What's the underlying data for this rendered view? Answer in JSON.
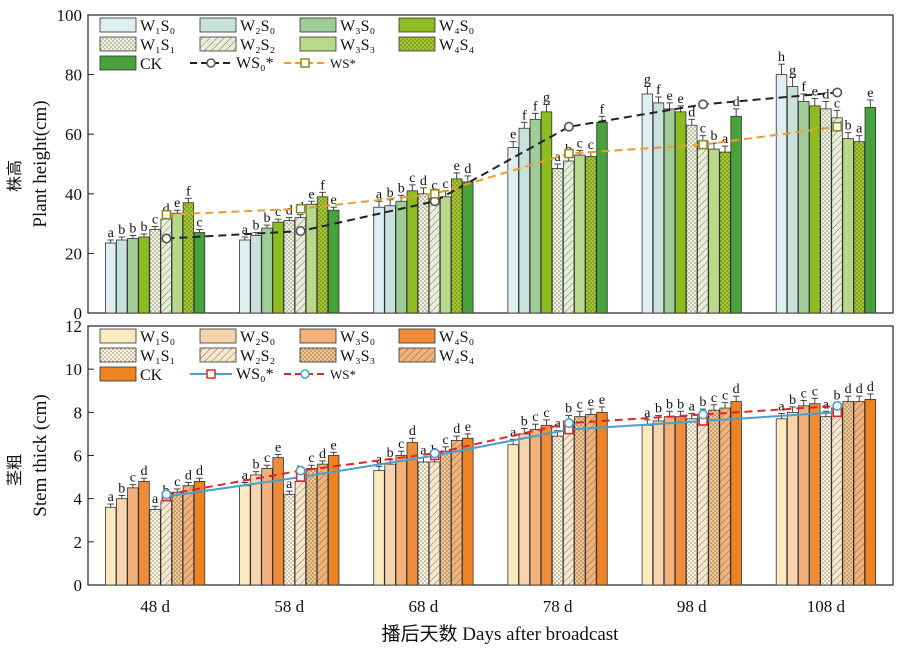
{
  "figure": {
    "x_axis_title": "播后天数 Days after broadcast"
  },
  "chart_data": [
    {
      "type": "bar",
      "panel": "top",
      "ylabel_cn": "株高",
      "ylabel": "Plant height(cm)",
      "ylim": [
        0,
        100
      ],
      "yticks": [
        "0",
        "20",
        "40",
        "60",
        "80",
        "100"
      ],
      "categories": [
        "48 d",
        "58 d",
        "68 d",
        "78 d",
        "98 d",
        "108 d"
      ],
      "series": [
        {
          "name": "W₁S₀",
          "fill": "#dfeef1",
          "pattern": "none",
          "values": [
            23.5,
            24.5,
            35.5,
            55.5,
            73.5,
            80.0
          ],
          "errors": [
            1.0,
            1.0,
            2.0,
            2.0,
            2.5,
            3.5
          ]
        },
        {
          "name": "W₂S₀",
          "fill": "#c8e2db",
          "pattern": "none",
          "values": [
            24.5,
            26.0,
            36.0,
            62.0,
            70.5,
            76.0
          ],
          "errors": [
            1.0,
            1.0,
            2.0,
            2.0,
            2.0,
            3.0
          ]
        },
        {
          "name": "W₃S₀",
          "fill": "#9fcd98",
          "pattern": "none",
          "values": [
            25.0,
            28.5,
            37.5,
            65.0,
            68.5,
            71.0
          ],
          "errors": [
            1.0,
            1.0,
            2.0,
            2.0,
            2.0,
            2.5
          ]
        },
        {
          "name": "W₄S₀",
          "fill": "#8cbc1f",
          "pattern": "none",
          "values": [
            25.5,
            30.5,
            41.0,
            67.5,
            67.5,
            69.5
          ],
          "errors": [
            1.0,
            1.0,
            2.0,
            2.5,
            2.0,
            2.5
          ]
        },
        {
          "name": "W₁S₁",
          "fill": "#eff3dc",
          "pattern": "dots",
          "values": [
            28.0,
            31.0,
            40.0,
            48.5,
            63.0,
            68.5
          ],
          "errors": [
            1.0,
            1.0,
            2.0,
            1.5,
            2.0,
            2.5
          ]
        },
        {
          "name": "W₂S₂",
          "fill": "#e8efd6",
          "pattern": "diag",
          "values": [
            31.5,
            32.0,
            38.5,
            51.0,
            57.5,
            65.5
          ],
          "errors": [
            1.0,
            1.0,
            2.0,
            1.5,
            2.0,
            2.5
          ]
        },
        {
          "name": "W₃S₃",
          "fill": "#b8d989",
          "pattern": "none",
          "values": [
            33.5,
            36.5,
            39.0,
            53.0,
            55.0,
            58.5
          ],
          "errors": [
            1.0,
            1.0,
            2.0,
            1.5,
            2.0,
            2.0
          ]
        },
        {
          "name": "W₄S₄",
          "fill": "#a2c82b",
          "pattern": "dots",
          "values": [
            37.0,
            39.0,
            45.0,
            52.5,
            54.0,
            57.5
          ],
          "errors": [
            1.5,
            1.5,
            2.0,
            1.5,
            2.0,
            2.0
          ]
        },
        {
          "name": "CK",
          "fill": "#47a23b",
          "pattern": "none",
          "values": [
            27.0,
            34.5,
            44.0,
            64.0,
            66.0,
            69.0
          ],
          "errors": [
            1.0,
            1.0,
            2.0,
            2.0,
            2.5,
            2.5
          ]
        }
      ],
      "letters": [
        [
          "a",
          "b",
          "b",
          "b",
          "c",
          "d",
          "e",
          "f",
          "c"
        ],
        [
          "a",
          "b",
          "b",
          "c",
          "d",
          "d",
          "e",
          "f",
          "e"
        ],
        [
          "a",
          "b",
          "b",
          "c",
          "d",
          "c",
          "c",
          "e",
          "d"
        ],
        [
          "e",
          "f",
          "f",
          "g",
          "a",
          "b",
          "c",
          "c",
          "f"
        ],
        [
          "g",
          "f",
          "e",
          "e",
          "d",
          "c",
          "b",
          "a",
          "d"
        ],
        [
          "h",
          "g",
          "f",
          "e",
          "d",
          "c",
          "b",
          "a",
          "e"
        ]
      ],
      "lines": [
        {
          "name": "WS₀*",
          "color": "#222222",
          "dash": "dash",
          "marker": "circle",
          "values": [
            25.0,
            27.5,
            37.5,
            62.5,
            70.0,
            74.0
          ]
        },
        {
          "name": "WS*",
          "color": "#ee9a2d",
          "dash": "dash",
          "marker": "square",
          "values": [
            33.0,
            35.0,
            40.0,
            53.5,
            56.5,
            62.5
          ]
        }
      ]
    },
    {
      "type": "bar",
      "panel": "bottom",
      "ylabel_cn": "茎粗",
      "ylabel": "Stem thick (cm)",
      "ylim": [
        0,
        12
      ],
      "yticks": [
        "0",
        "2",
        "4",
        "6",
        "8",
        "10",
        "12"
      ],
      "categories": [
        "48 d",
        "58 d",
        "68 d",
        "78 d",
        "98 d",
        "108 d"
      ],
      "series": [
        {
          "name": "W₁S₀",
          "fill": "#fbe9bf",
          "pattern": "none",
          "values": [
            3.6,
            4.6,
            5.3,
            6.5,
            7.4,
            7.7
          ],
          "errors": [
            0.15,
            0.15,
            0.2,
            0.25,
            0.25,
            0.25
          ]
        },
        {
          "name": "W₂S₀",
          "fill": "#f7d4ae",
          "pattern": "none",
          "values": [
            4.0,
            5.1,
            5.6,
            7.0,
            7.6,
            8.0
          ],
          "errors": [
            0.15,
            0.15,
            0.2,
            0.25,
            0.25,
            0.25
          ]
        },
        {
          "name": "W₃S₀",
          "fill": "#f2b07a",
          "pattern": "none",
          "values": [
            4.5,
            5.4,
            6.0,
            7.2,
            7.8,
            8.3
          ],
          "errors": [
            0.15,
            0.15,
            0.2,
            0.25,
            0.25,
            0.25
          ]
        },
        {
          "name": "W₄S₀",
          "fill": "#ee8c3a",
          "pattern": "none",
          "values": [
            4.8,
            5.9,
            6.6,
            7.4,
            7.8,
            8.4
          ],
          "errors": [
            0.15,
            0.15,
            0.2,
            0.25,
            0.25,
            0.25
          ]
        },
        {
          "name": "W₁S₁",
          "fill": "#fdf4dc",
          "pattern": "dots",
          "values": [
            3.5,
            4.2,
            5.7,
            6.9,
            7.7,
            7.8
          ],
          "errors": [
            0.15,
            0.15,
            0.2,
            0.25,
            0.25,
            0.25
          ]
        },
        {
          "name": "W₂S₂",
          "fill": "#f8e7cd",
          "pattern": "diag",
          "values": [
            3.9,
            4.8,
            5.7,
            7.6,
            7.9,
            8.2
          ],
          "errors": [
            0.15,
            0.15,
            0.2,
            0.25,
            0.25,
            0.25
          ]
        },
        {
          "name": "W₃S₃",
          "fill": "#f3c48c",
          "pattern": "dots",
          "values": [
            4.3,
            5.4,
            6.2,
            7.8,
            8.1,
            8.5
          ],
          "errors": [
            0.15,
            0.15,
            0.2,
            0.25,
            0.25,
            0.25
          ]
        },
        {
          "name": "W₄S₄",
          "fill": "#f2b27a",
          "pattern": "diag",
          "values": [
            4.6,
            5.6,
            6.7,
            7.9,
            8.2,
            8.5
          ],
          "errors": [
            0.15,
            0.15,
            0.2,
            0.25,
            0.25,
            0.25
          ]
        },
        {
          "name": "CK",
          "fill": "#ee8324",
          "pattern": "none",
          "values": [
            4.8,
            6.0,
            6.8,
            8.0,
            8.5,
            8.6
          ],
          "errors": [
            0.15,
            0.15,
            0.2,
            0.25,
            0.25,
            0.25
          ]
        }
      ],
      "letters": [
        [
          "a",
          "b",
          "c",
          "d",
          "a",
          "b",
          "c",
          "d",
          "d"
        ],
        [
          "a",
          "b",
          "c",
          "e",
          "a",
          "b",
          "c",
          "d",
          "e"
        ],
        [
          "a",
          "b",
          "c",
          "d",
          "a",
          "b",
          "c",
          "d",
          "e"
        ],
        [
          "a",
          "b",
          "c",
          "c",
          "a",
          "b",
          "c",
          "e",
          "e"
        ],
        [
          "a",
          "b",
          "b",
          "b",
          "a",
          "b",
          "c",
          "c",
          "d"
        ],
        [
          "a",
          "b",
          "c",
          "c",
          "a",
          "b",
          "d",
          "d",
          "d"
        ]
      ],
      "lines": [
        {
          "name": "WS₀*",
          "color": "#4a9fd0",
          "dash": "solid",
          "marker": "square-red",
          "values": [
            4.1,
            5.0,
            6.0,
            7.2,
            7.6,
            8.0
          ]
        },
        {
          "name": "WS*",
          "color": "#e02626",
          "dash": "dash",
          "marker": "circle-blue",
          "values": [
            4.2,
            5.3,
            6.1,
            7.5,
            7.9,
            8.3
          ]
        }
      ]
    }
  ]
}
